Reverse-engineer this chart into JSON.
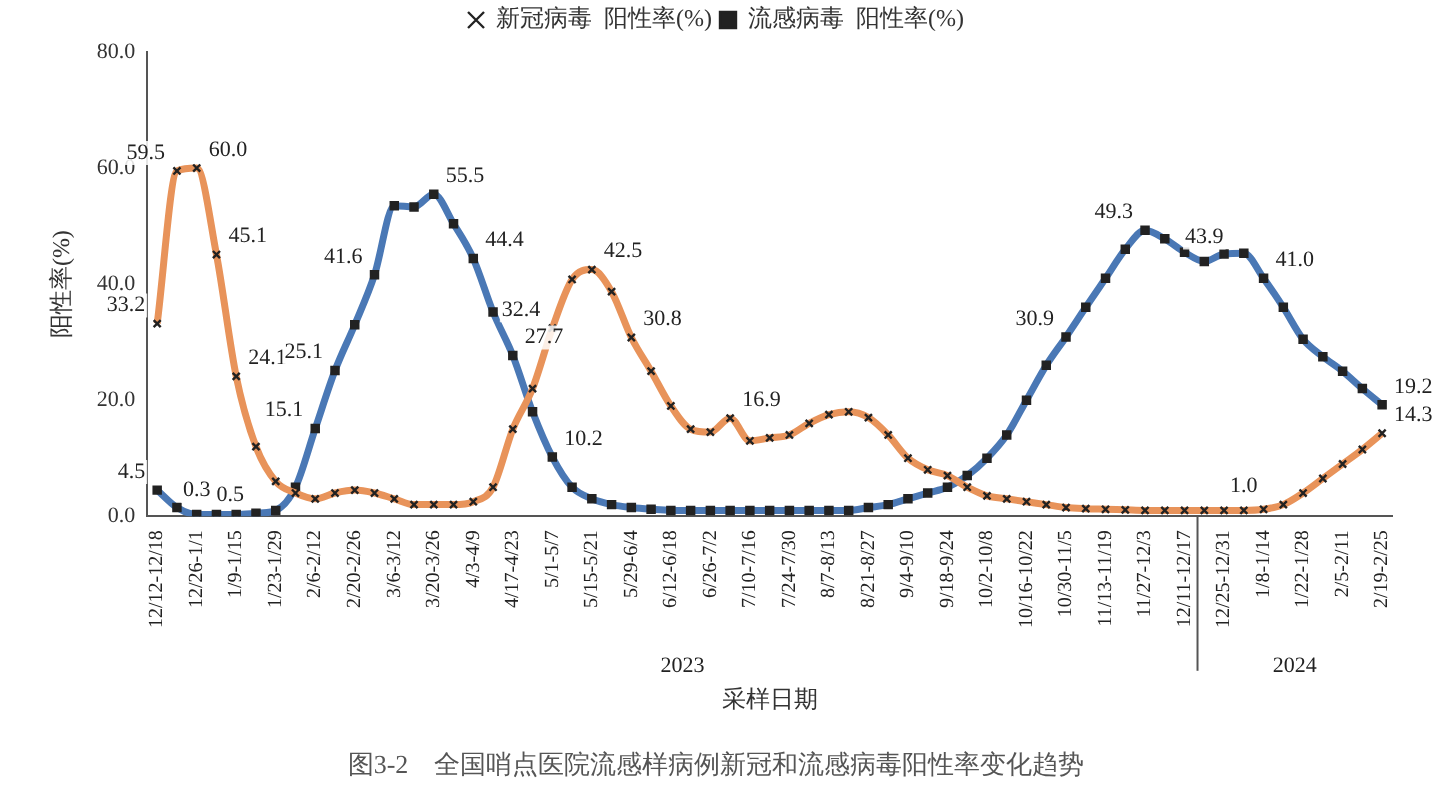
{
  "chart_data": {
    "type": "line",
    "title": "图3-2　全国哨点医院流感样病例新冠和流感病毒阳性率变化趋势",
    "xlabel": "采样日期",
    "ylabel": "阳性率(%)",
    "categories": [
      "12/12-12/18",
      null,
      "12/26-1/1",
      null,
      "1/9-1/15",
      null,
      "1/23-1/29",
      null,
      "2/6-2/12",
      null,
      "2/20-2/26",
      null,
      "3/6-3/12",
      null,
      "3/20-3/26",
      null,
      "4/3-4/9",
      null,
      "4/17-4/23",
      null,
      "5/1-5/7",
      null,
      "5/15-5/21",
      null,
      "5/29-6/4",
      null,
      "6/12-6/18",
      null,
      "6/26-7/2",
      null,
      "7/10-7/16",
      null,
      "7/24-7/30",
      null,
      "8/7-8/13",
      null,
      "8/21-8/27",
      null,
      "9/4-9/10",
      null,
      "9/18-9/24",
      null,
      "10/2-10/8",
      null,
      "10/16-10/22",
      null,
      "10/30-11/5",
      null,
      "11/13-11/19",
      null,
      "11/27-12/3",
      null,
      "12/11-12/17",
      null,
      "12/25-12/31",
      null,
      "1/8-1/14",
      null,
      "1/22-1/28",
      null,
      "2/5-2/11",
      null,
      "2/19-2/25"
    ],
    "series": [
      {
        "name": "新冠病毒  阳性率(%)",
        "color": "#e8935a",
        "marker": "cross",
        "values": [
          33.2,
          59.5,
          60.0,
          45.1,
          24.1,
          12,
          6,
          4,
          3,
          4,
          4.5,
          4,
          3,
          2,
          2,
          2,
          2.5,
          5,
          15,
          22,
          32.4,
          40.8,
          42.5,
          38.7,
          30.8,
          25,
          19,
          15,
          14.5,
          16.9,
          13,
          13.5,
          14,
          16,
          17.5,
          18,
          17,
          14,
          10,
          8,
          7,
          5,
          3.5,
          3,
          2.5,
          2,
          1.5,
          1.3,
          1.2,
          1.1,
          1,
          1,
          1,
          1,
          1,
          1.0,
          1.2,
          2,
          4,
          6.5,
          9,
          11.5,
          14.3
        ],
        "value_labels": [
          "33.2",
          "59.5",
          "60.0",
          "45.1",
          "24.1",
          null,
          null,
          null,
          null,
          null,
          null,
          null,
          null,
          null,
          null,
          null,
          null,
          null,
          null,
          null,
          "32.4",
          null,
          "42.5",
          null,
          "30.8",
          null,
          null,
          null,
          null,
          "16.9",
          null,
          null,
          null,
          null,
          null,
          null,
          null,
          null,
          null,
          null,
          null,
          null,
          null,
          null,
          null,
          null,
          null,
          null,
          null,
          null,
          null,
          null,
          null,
          null,
          null,
          "1.0",
          null,
          null,
          null,
          null,
          null,
          null,
          "14.3"
        ]
      },
      {
        "name": "流感病毒  阳性率(%)",
        "color": "#4a78b5",
        "marker": "square",
        "values": [
          4.5,
          1.5,
          0.3,
          0.3,
          0.3,
          0.5,
          1,
          5,
          15.1,
          25.1,
          33,
          41.6,
          53.5,
          53.3,
          55.5,
          50.4,
          44.4,
          35.2,
          27.7,
          18,
          10.2,
          5,
          3,
          2,
          1.5,
          1.2,
          1,
          1,
          1,
          1,
          1,
          1,
          1,
          1,
          1,
          1,
          1.5,
          2,
          3,
          4,
          5,
          7,
          10,
          14,
          20,
          26,
          30.9,
          36,
          41,
          46,
          49.3,
          47.8,
          45.5,
          43.9,
          45.2,
          45.3,
          41.0,
          36,
          30.5,
          27.5,
          25,
          22,
          19.2
        ],
        "value_labels": [
          "4.5",
          null,
          "0.3",
          null,
          null,
          "0.5",
          null,
          null,
          "15.1",
          "25.1",
          null,
          "41.6",
          null,
          null,
          "55.5",
          null,
          "44.4",
          null,
          "27.7",
          null,
          "10.2",
          null,
          null,
          null,
          null,
          null,
          null,
          null,
          null,
          null,
          null,
          null,
          null,
          null,
          null,
          null,
          null,
          null,
          null,
          null,
          null,
          null,
          null,
          null,
          null,
          null,
          "30.9",
          null,
          null,
          null,
          "49.3",
          null,
          null,
          "43.9",
          null,
          null,
          "41.0",
          null,
          null,
          null,
          null,
          null,
          "19.2"
        ]
      }
    ],
    "ylim": [
      0,
      80
    ],
    "yticks": [
      {
        "value": 0,
        "label": "0.0"
      },
      {
        "value": 20,
        "label": "20.0"
      },
      {
        "value": 40,
        "label": "40.0"
      },
      {
        "value": 60,
        "label": "60.0"
      },
      {
        "value": 80,
        "label": "80.0"
      }
    ],
    "grid": false,
    "legend": "top",
    "annotations": [
      "2023",
      "2024"
    ]
  }
}
